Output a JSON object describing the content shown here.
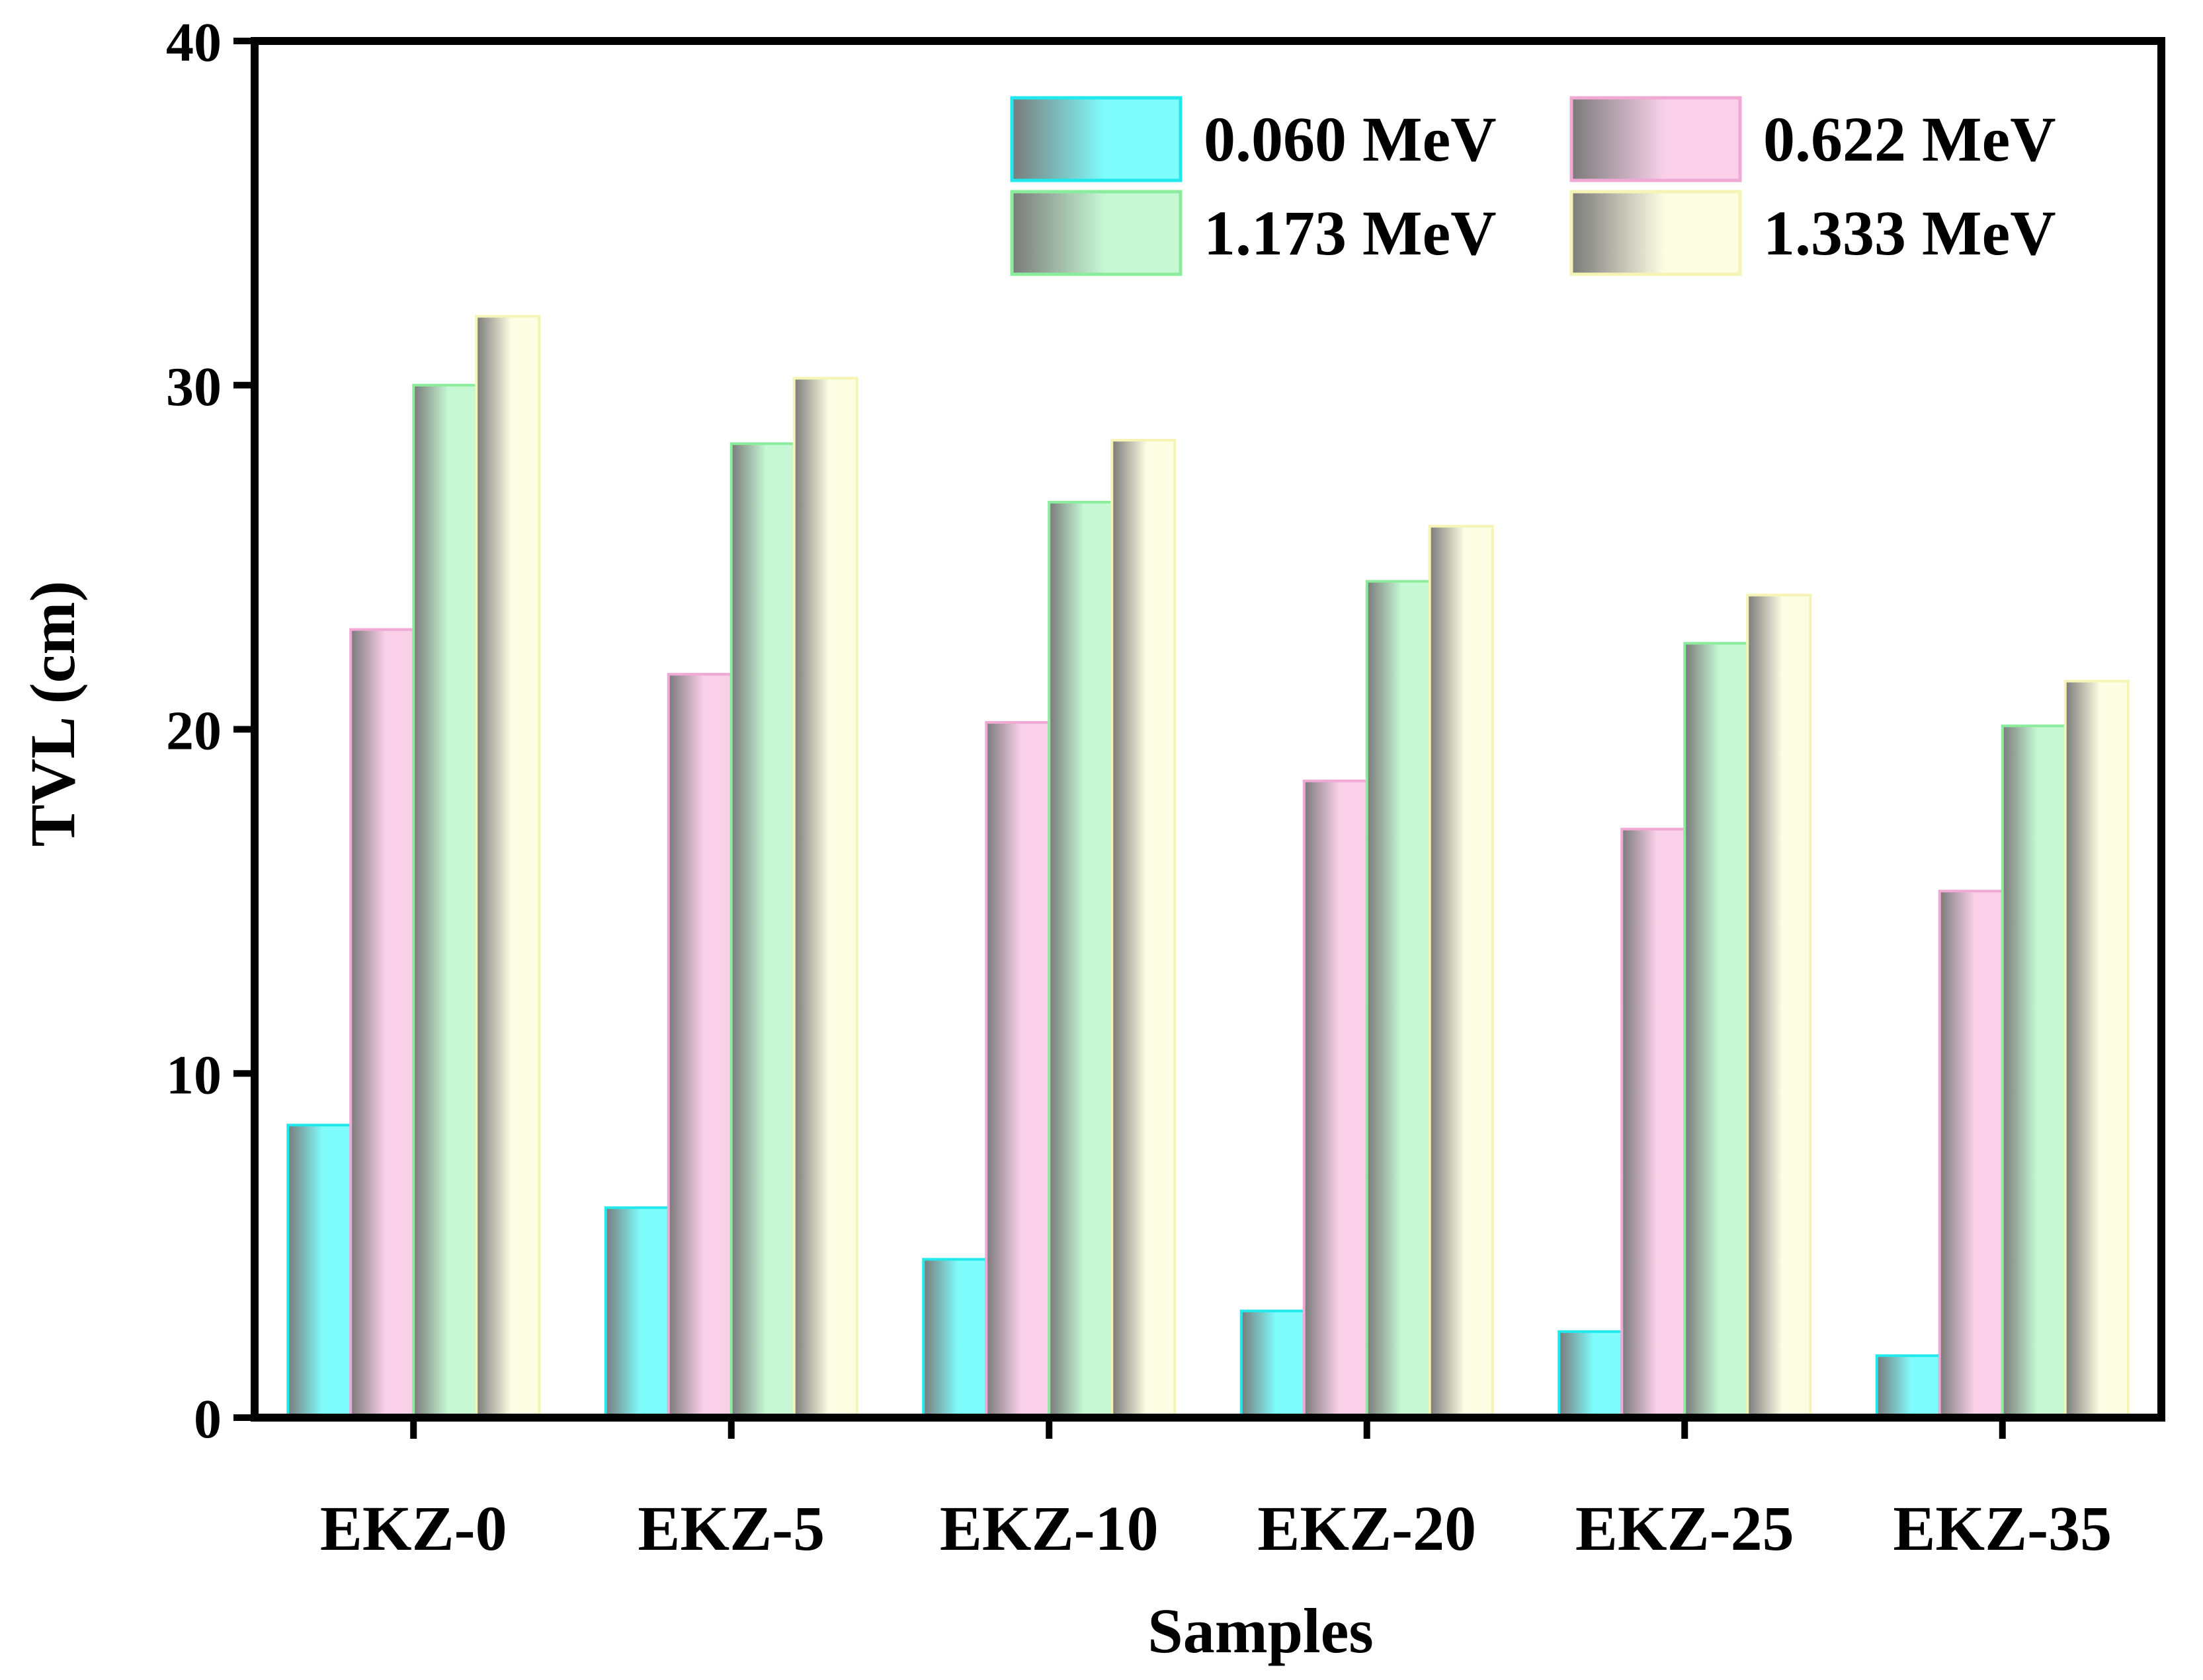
{
  "chart_data": {
    "type": "bar",
    "title": "",
    "xlabel": "Samples",
    "ylabel": "TVL (cm)",
    "ylim": [
      0,
      40
    ],
    "yticks": [
      0,
      10,
      20,
      30,
      40
    ],
    "grid": false,
    "legend_position": "top-right",
    "categories": [
      "EKZ-0",
      "EKZ-5",
      "EKZ-10",
      "EKZ-20",
      "EKZ-25",
      "EKZ-35"
    ],
    "series": [
      {
        "name": "0.060 MeV",
        "color": "#7ffcfc",
        "edge": "#20e8ec",
        "values": [
          8.5,
          6.1,
          4.6,
          3.1,
          2.5,
          1.8
        ]
      },
      {
        "name": "0.622 MeV",
        "color": "#f9d0e8",
        "edge": "#f0a8d4",
        "values": [
          22.9,
          21.6,
          20.2,
          18.5,
          17.1,
          15.3
        ]
      },
      {
        "name": "1.173 MeV",
        "color": "#c6f8d4",
        "edge": "#8cec9e",
        "values": [
          30.0,
          28.3,
          26.6,
          24.3,
          22.5,
          20.1
        ]
      },
      {
        "name": "1.333 MeV",
        "color": "#fdfde4",
        "edge": "#f4f4b4",
        "values": [
          32.0,
          30.2,
          28.4,
          25.9,
          23.9,
          21.4
        ]
      }
    ]
  }
}
